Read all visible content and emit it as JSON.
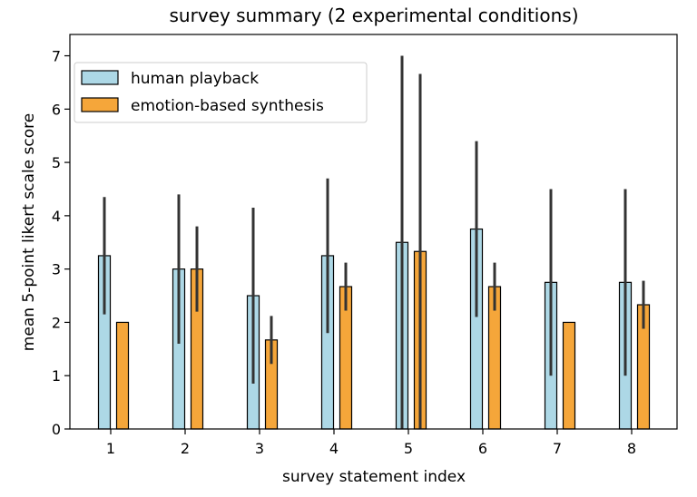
{
  "chart_data": {
    "type": "bar",
    "title": "survey summary (2 experimental conditions)",
    "xlabel": "survey statement index",
    "ylabel": "mean 5-point likert scale score",
    "categories": [
      "1",
      "2",
      "3",
      "4",
      "5",
      "6",
      "7",
      "8"
    ],
    "ylim": [
      0,
      7.4
    ],
    "yticks": [
      "0",
      "1",
      "2",
      "3",
      "4",
      "5",
      "6",
      "7"
    ],
    "legend_position": "top-left",
    "grid": false,
    "series": [
      {
        "name": "human playback",
        "color": "#add8e6",
        "values": [
          3.25,
          3.0,
          2.5,
          3.25,
          3.5,
          3.75,
          2.75,
          2.75
        ],
        "errors": [
          1.1,
          1.4,
          1.65,
          1.45,
          3.5,
          1.65,
          1.75,
          1.75
        ]
      },
      {
        "name": "emotion-based synthesis",
        "color": "#f5a63a",
        "values": [
          2.0,
          3.0,
          1.67,
          2.67,
          3.33,
          2.67,
          2.0,
          2.33
        ],
        "errors": [
          0.0,
          0.8,
          0.45,
          0.45,
          3.33,
          0.45,
          0.0,
          0.45
        ]
      }
    ]
  }
}
